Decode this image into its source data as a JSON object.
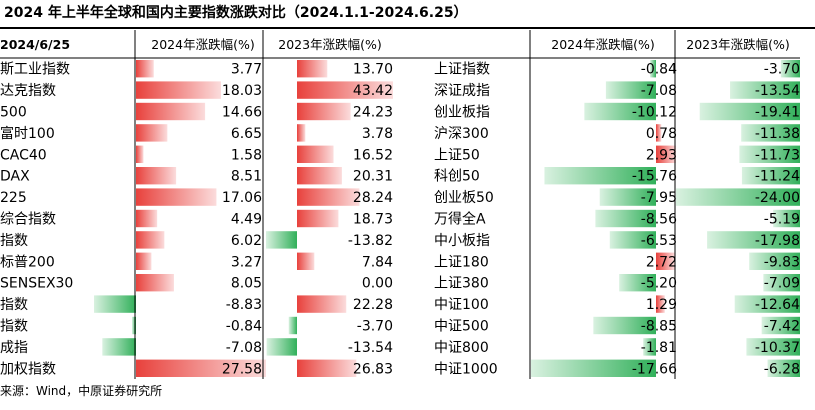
{
  "title": "2024 年上半年全球和国内主要指数涨跌对比（2024.1.1-2024.6.25）",
  "source": "来源：Wind，中原证券研究所",
  "colors": {
    "up": "#e8413c",
    "down": "#31b05a",
    "rule": "#000000"
  },
  "chart_data": {
    "type": "table",
    "date_label": "2024/6/25",
    "columns": [
      "2024年涨跌幅(%)",
      "2023年涨跌幅(%)"
    ],
    "left_table": {
      "indices": [
        "斯工业指数",
        "达克指数",
        "500",
        "富时100",
        "CAC40",
        "DAX",
        "225",
        "综合指数",
        "指数",
        "标普200",
        "SENSEX30",
        "指数",
        "指数",
        "成指",
        "加权指数"
      ],
      "change_2024": [
        3.77,
        18.03,
        14.66,
        6.65,
        1.58,
        8.51,
        17.06,
        4.49,
        6.02,
        3.27,
        8.05,
        -8.83,
        -0.84,
        -7.08,
        27.58
      ],
      "change_2024_labels": [
        "3.77",
        "18.03",
        "14.66",
        "6.65",
        "1.58",
        "8.51",
        "17.06",
        "4.49",
        "6.02",
        "3.27",
        "8.05",
        "-8.83",
        "-0.84",
        "-7.08",
        "27.58"
      ],
      "change_2023": [
        13.7,
        43.42,
        24.23,
        3.78,
        16.52,
        20.31,
        28.24,
        18.73,
        -13.82,
        7.84,
        0.0,
        22.28,
        -3.7,
        -13.54,
        26.83
      ],
      "change_2023_labels": [
        "13.70",
        "43.42",
        "24.23",
        "3.78",
        "16.52",
        "20.31",
        "28.24",
        "18.73",
        "-13.82",
        "7.84",
        "0.00",
        "22.28",
        "-3.70",
        "-13.54",
        "26.83"
      ]
    },
    "right_table": {
      "indices": [
        "上证指数",
        "深证成指",
        "创业板指",
        "沪深300",
        "上证50",
        "科创50",
        "创业板50",
        "万得全A",
        "中小板指",
        "上证180",
        "上证380",
        "中证100",
        "中证500",
        "中证800",
        "中证1000"
      ],
      "change_2024": [
        -0.84,
        -7.08,
        -10.12,
        0.78,
        2.93,
        -15.76,
        -7.95,
        -8.56,
        -6.53,
        2.72,
        -5.2,
        1.29,
        -8.85,
        -1.81,
        -17.66
      ],
      "change_2024_labels": [
        "-0.84",
        "-7.08",
        "-10.12",
        "0.78",
        "2.93",
        "-15.76",
        "-7.95",
        "-8.56",
        "-6.53",
        "2.72",
        "-5.20",
        "1.29",
        "-8.85",
        "-1.81",
        "-17.66"
      ],
      "change_2023": [
        -3.7,
        -13.54,
        -19.41,
        -11.38,
        -11.73,
        -11.24,
        -24.0,
        -5.19,
        -17.98,
        -9.83,
        -7.09,
        -12.64,
        -7.42,
        -10.37,
        -6.28
      ],
      "change_2023_labels": [
        "-3.70",
        "-13.54",
        "-19.41",
        "-11.38",
        "-11.73",
        "-11.24",
        "-24.00",
        "-5.19",
        "-17.98",
        "-9.83",
        "-7.09",
        "-12.64",
        "-7.42",
        "-10.37",
        "-6.28"
      ]
    }
  }
}
